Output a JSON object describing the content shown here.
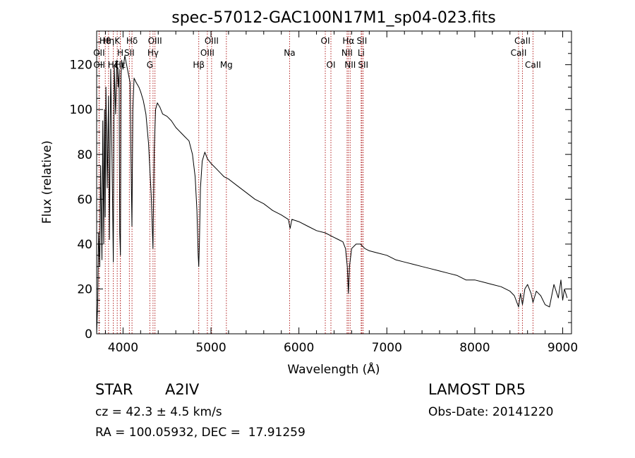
{
  "chart_data": {
    "type": "line",
    "title": "spec-57012-GAC100N17M1_sp04-023.fits",
    "xlabel": "Wavelength (Å)",
    "ylabel": "Flux (relative)",
    "xlim": [
      3700,
      9100
    ],
    "ylim": [
      0,
      135
    ],
    "xticks": [
      4000,
      5000,
      6000,
      7000,
      8000,
      9000
    ],
    "xtick_labels": [
      "4000",
      "5000",
      "6000",
      "7000",
      "8000",
      "9000"
    ],
    "yticks": [
      0,
      20,
      40,
      60,
      80,
      100,
      120
    ],
    "ytick_labels": [
      "0",
      "20",
      "40",
      "60",
      "80",
      "100",
      "120"
    ],
    "grid": false,
    "series": [
      {
        "x": [
          3700,
          3712,
          3722,
          3735,
          3745,
          3760,
          3770,
          3780,
          3790,
          3797,
          3805,
          3820,
          3835,
          3845,
          3860,
          3875,
          3889,
          3900,
          3915,
          3930,
          3945,
          3955,
          3962,
          3970,
          3978,
          3985,
          4000,
          4020,
          4040,
          4060,
          4080,
          4090,
          4101,
          4112,
          4125,
          4150,
          4180,
          4200,
          4230,
          4260,
          4290,
          4320,
          4340,
          4355,
          4370,
          4390,
          4420,
          4450,
          4500,
          4550,
          4600,
          4650,
          4700,
          4750,
          4790,
          4820,
          4840,
          4855,
          4861,
          4868,
          4880,
          4900,
          4930,
          4960,
          5000,
          5050,
          5100,
          5150,
          5200,
          5300,
          5400,
          5500,
          5600,
          5700,
          5800,
          5880,
          5900,
          5920,
          6000,
          6100,
          6200,
          6300,
          6400,
          6450,
          6500,
          6530,
          6550,
          6563,
          6575,
          6600,
          6650,
          6700,
          6750,
          6800,
          6900,
          7000,
          7100,
          7200,
          7300,
          7400,
          7500,
          7600,
          7700,
          7800,
          7900,
          8000,
          8100,
          8200,
          8300,
          8400,
          8450,
          8498,
          8520,
          8542,
          8570,
          8600,
          8640,
          8662,
          8700,
          8750,
          8800,
          8850,
          8900,
          8950,
          8980,
          9000,
          9020,
          9050
        ],
        "y": [
          0,
          14,
          45,
          30,
          75,
          33,
          95,
          40,
          100,
          52,
          110,
          65,
          106,
          42,
          118,
          78,
          32,
          120,
          98,
          122,
          110,
          118,
          45,
          35,
          115,
          122,
          118,
          124,
          120,
          116,
          112,
          80,
          48,
          100,
          114,
          112,
          110,
          108,
          104,
          98,
          85,
          62,
          38,
          82,
          100,
          103,
          101,
          98,
          97,
          95,
          92,
          90,
          88,
          86,
          80,
          70,
          55,
          35,
          30,
          40,
          65,
          77,
          81,
          78,
          76,
          74,
          72,
          70,
          69,
          66,
          63,
          60,
          58,
          55,
          53,
          51,
          47,
          51,
          50,
          48,
          46,
          45,
          43,
          42,
          41,
          38,
          30,
          18,
          30,
          38,
          40,
          40,
          38,
          37,
          36,
          35,
          33,
          32,
          31,
          30,
          29,
          28,
          27,
          26,
          24,
          24,
          23,
          22,
          21,
          19,
          17,
          12,
          18,
          13,
          20,
          22,
          18,
          14,
          19,
          17,
          13,
          12,
          22,
          16,
          24,
          15,
          20,
          16
        ]
      }
    ],
    "lines": [
      {
        "x": 3727,
        "row": 2,
        "label": "OII"
      },
      {
        "x": 3729,
        "row": 3,
        "label": "OII"
      },
      {
        "x": 3798,
        "row": 1,
        "label": "H8"
      },
      {
        "x": 3835,
        "row": 1,
        "label": "Hη"
      },
      {
        "x": 3889,
        "row": 3,
        "label": "Hζ"
      },
      {
        "x": 3934,
        "row": 1,
        "label": "K"
      },
      {
        "x": 3969,
        "row": 2,
        "label": "H"
      },
      {
        "x": 3970,
        "row": 3,
        "label": "Hε"
      },
      {
        "x": 4072,
        "row": 2,
        "label": "SII"
      },
      {
        "x": 4102,
        "row": 1,
        "label": "Hδ"
      },
      {
        "x": 4305,
        "row": 3,
        "label": "G"
      },
      {
        "x": 4341,
        "row": 2,
        "label": "Hγ"
      },
      {
        "x": 4363,
        "row": 1,
        "label": "OIII"
      },
      {
        "x": 4861,
        "row": 3,
        "label": "Hβ"
      },
      {
        "x": 4959,
        "row": 2,
        "label": "OIII"
      },
      {
        "x": 5007,
        "row": 1,
        "label": "OIII"
      },
      {
        "x": 5175,
        "row": 3,
        "label": "Mg"
      },
      {
        "x": 5894,
        "row": 2,
        "label": "Na"
      },
      {
        "x": 6300,
        "row": 1,
        "label": "OI"
      },
      {
        "x": 6364,
        "row": 3,
        "label": "OI"
      },
      {
        "x": 6548,
        "row": 2,
        "label": "NII"
      },
      {
        "x": 6563,
        "row": 1,
        "label": "Hα"
      },
      {
        "x": 6583,
        "row": 3,
        "label": "NII"
      },
      {
        "x": 6708,
        "row": 2,
        "label": "Li"
      },
      {
        "x": 6716,
        "row": 1,
        "label": "SII"
      },
      {
        "x": 6731,
        "row": 3,
        "label": "SII"
      },
      {
        "x": 8498,
        "row": 2,
        "label": "CaII"
      },
      {
        "x": 8542,
        "row": 1,
        "label": "CaII"
      },
      {
        "x": 8662,
        "row": 3,
        "label": "CaII"
      }
    ],
    "line_color": "#b22222"
  },
  "info": {
    "object_class": "STAR",
    "subclass": "A2IV",
    "survey": "LAMOST DR5",
    "redshift": "cz = 42.3 ± 4.5 km/s",
    "obs_date": "Obs-Date: 20141220",
    "coords": "RA = 100.05932, DEC =  17.91259"
  }
}
